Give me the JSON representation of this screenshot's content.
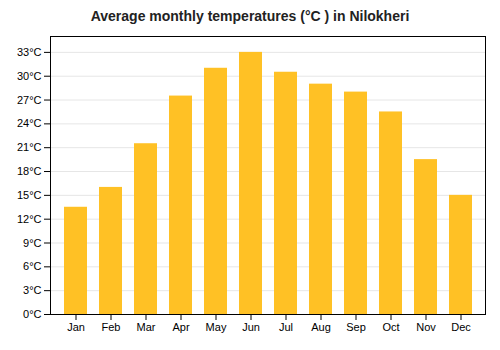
{
  "chart_data": {
    "type": "bar",
    "title": "Average monthly temperatures (°C ) in Nilokheri",
    "categories": [
      "Jan",
      "Feb",
      "Mar",
      "Apr",
      "May",
      "Jun",
      "Jul",
      "Aug",
      "Sep",
      "Oct",
      "Nov",
      "Dec"
    ],
    "values": [
      13.5,
      16.0,
      21.5,
      27.5,
      31.0,
      33.0,
      30.5,
      29.0,
      28.0,
      25.5,
      19.5,
      15.0
    ],
    "color": "#FFC125",
    "ylim": [
      0,
      35
    ],
    "yticks": [
      {
        "value": 0,
        "label": "0°C"
      },
      {
        "value": 3,
        "label": "3°C"
      },
      {
        "value": 6,
        "label": "6°C"
      },
      {
        "value": 9,
        "label": "9°C"
      },
      {
        "value": 12,
        "label": "12°C"
      },
      {
        "value": 15,
        "label": "15°C"
      },
      {
        "value": 18,
        "label": "18°C"
      },
      {
        "value": 21,
        "label": "21°C"
      },
      {
        "value": 24,
        "label": "24°C"
      },
      {
        "value": 27,
        "label": "27°C"
      },
      {
        "value": 30,
        "label": "30°C"
      },
      {
        "value": 33,
        "label": "33°C"
      }
    ],
    "grid": true
  }
}
